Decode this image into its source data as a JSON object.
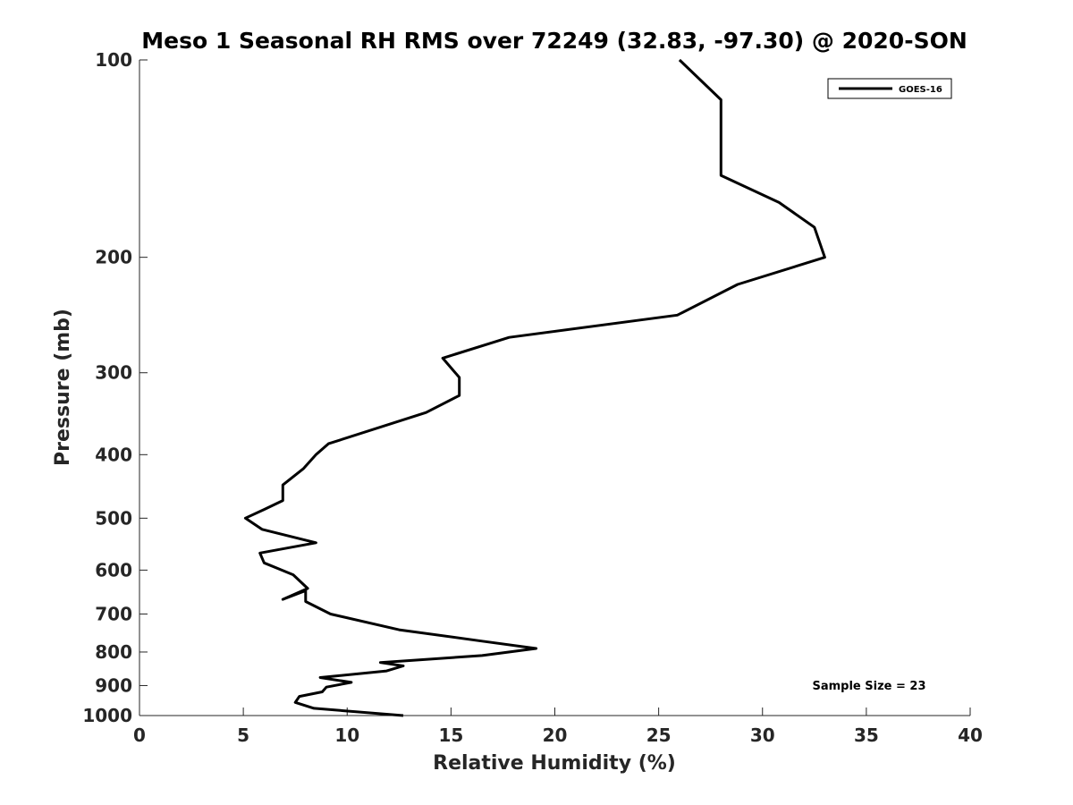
{
  "chart_data": {
    "type": "line",
    "title": "Meso 1 Seasonal RH RMS over 72249 (32.83, -97.30) @ 2020-SON",
    "xlabel": "Relative Humidity (%)",
    "ylabel": "Pressure (mb)",
    "xlim": [
      0,
      40
    ],
    "ylim": [
      100,
      1000
    ],
    "y_scale": "log",
    "y_reversed": true,
    "x_ticks": [
      0,
      5,
      10,
      15,
      20,
      25,
      30,
      35,
      40
    ],
    "x_tick_labels": [
      "0",
      "5",
      "10",
      "15",
      "20",
      "25",
      "30",
      "35",
      "40"
    ],
    "y_ticks": [
      100,
      200,
      300,
      400,
      500,
      600,
      700,
      800,
      900,
      1000
    ],
    "y_tick_labels": [
      "100",
      "200",
      "300",
      "400",
      "500",
      "600",
      "700",
      "800",
      "900",
      "1000"
    ],
    "grid": false,
    "legend_position": "top-right",
    "annotation": "Sample Size = 23",
    "series": [
      {
        "name": "GOES-16",
        "color": "#000000",
        "x": [
          26.0,
          28.0,
          28.0,
          28.0,
          30.8,
          32.5,
          33.0,
          28.8,
          25.9,
          17.8,
          14.6,
          15.4,
          15.4,
          13.8,
          9.1,
          8.5,
          7.9,
          6.9,
          6.9,
          6.0,
          5.1,
          5.9,
          8.5,
          5.8,
          6.0,
          7.4,
          8.1,
          6.9,
          8.0,
          8.0,
          9.2,
          12.5,
          16.5,
          19.1,
          16.5,
          11.6,
          12.7,
          11.9,
          8.7,
          10.2,
          9.0,
          8.8,
          7.7,
          7.5,
          8.4,
          12.7
        ],
        "y": [
          100,
          115,
          130,
          150,
          165,
          180,
          200,
          220,
          245,
          265,
          285,
          305,
          325,
          345,
          385,
          400,
          420,
          445,
          470,
          485,
          500,
          520,
          545,
          565,
          585,
          610,
          640,
          665,
          645,
          670,
          700,
          740,
          770,
          790,
          810,
          830,
          840,
          855,
          875,
          890,
          905,
          920,
          935,
          955,
          975,
          1000
        ]
      }
    ]
  },
  "colors": {
    "line": "#000000",
    "axis": "#262626",
    "background": "#ffffff"
  }
}
